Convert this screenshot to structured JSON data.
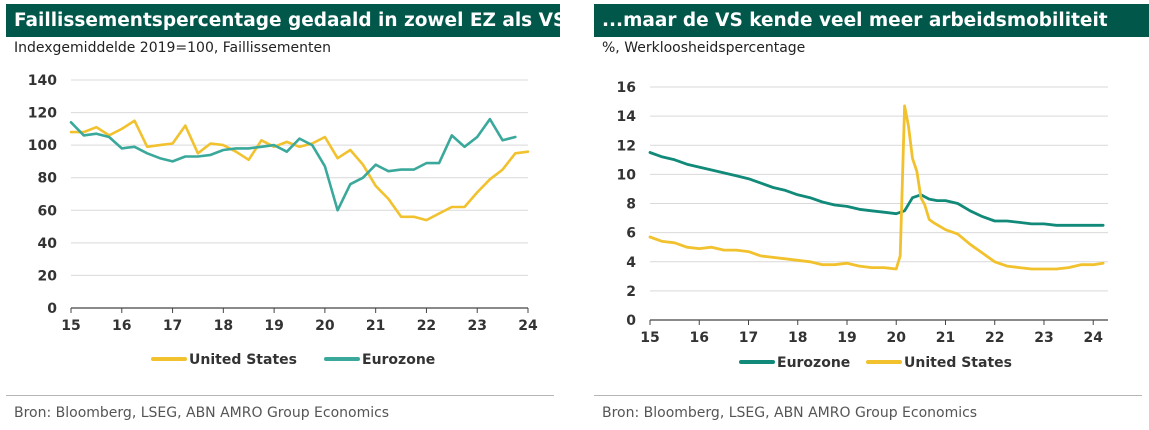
{
  "colors": {
    "title_bg": "#00574a",
    "us": "#f2c12e",
    "ez_left": "#3aa99b",
    "ez_right": "#118a79",
    "grid": "#d9d9d9"
  },
  "left": {
    "title": "Faillissementspercentage gedaald in zowel EZ als VS...",
    "subtitle": "Indexgemiddelde 2019=100, Faillissementen",
    "source": "Bron: Bloomberg, LSEG, ABN AMRO Group Economics"
  },
  "right": {
    "title": "...maar de VS kende veel meer arbeidsmobiliteit",
    "subtitle": "%, Werkloosheidspercentage",
    "source": "Bron: Bloomberg, LSEG, ABN AMRO Group Economics"
  },
  "chart_data": [
    {
      "type": "line",
      "title": "Faillissementspercentage gedaald in zowel EZ als VS...",
      "subtitle": "Indexgemiddelde 2019=100, Faillissementen",
      "xlim": [
        15,
        24
      ],
      "ylim": [
        0,
        140
      ],
      "xticks": [
        "15",
        "16",
        "17",
        "18",
        "19",
        "20",
        "21",
        "22",
        "23",
        "24"
      ],
      "yticks": [
        "0",
        "20",
        "40",
        "60",
        "80",
        "100",
        "120",
        "140"
      ],
      "grid": true,
      "legend": "bottom",
      "series": [
        {
          "name": "United States",
          "color": "#f2c12e",
          "x": [
            15,
            15.25,
            15.5,
            15.75,
            16,
            16.25,
            16.5,
            16.75,
            17,
            17.25,
            17.5,
            17.75,
            18,
            18.25,
            18.5,
            18.75,
            19,
            19.25,
            19.5,
            19.75,
            20,
            20.25,
            20.5,
            20.75,
            21,
            21.25,
            21.5,
            21.75,
            22,
            22.25,
            22.5,
            22.75,
            23,
            23.25,
            23.5,
            23.75,
            24
          ],
          "values": [
            108,
            108,
            111,
            106,
            110,
            115,
            99,
            100,
            101,
            112,
            95,
            101,
            100,
            96,
            91,
            103,
            99,
            102,
            99,
            101,
            105,
            92,
            97,
            88,
            75,
            67,
            56,
            56,
            54,
            58,
            62,
            62,
            71,
            79,
            85,
            95,
            96
          ]
        },
        {
          "name": "Eurozone",
          "color": "#3aa99b",
          "x": [
            15,
            15.25,
            15.5,
            15.75,
            16,
            16.25,
            16.5,
            16.75,
            17,
            17.25,
            17.5,
            17.75,
            18,
            18.25,
            18.5,
            18.75,
            19,
            19.25,
            19.5,
            19.75,
            20,
            20.25,
            20.5,
            20.75,
            21,
            21.25,
            21.5,
            21.75,
            22,
            22.25,
            22.5,
            22.75,
            23,
            23.25,
            23.5,
            23.75
          ],
          "values": [
            114,
            106,
            107,
            105,
            98,
            99,
            95,
            92,
            90,
            93,
            93,
            94,
            97,
            98,
            98,
            99,
            100,
            96,
            104,
            100,
            87,
            60,
            76,
            80,
            88,
            84,
            85,
            85,
            89,
            89,
            106,
            99,
            105,
            116,
            103,
            105
          ]
        }
      ]
    },
    {
      "type": "line",
      "title": "...maar de VS kende veel meer arbeidsmobiliteit",
      "subtitle": "%, Werkloosheidspercentage",
      "xlim": [
        15,
        24.3
      ],
      "ylim": [
        0,
        16
      ],
      "xticks": [
        "15",
        "16",
        "17",
        "18",
        "19",
        "20",
        "21",
        "22",
        "23",
        "24"
      ],
      "yticks": [
        "0",
        "2",
        "4",
        "6",
        "8",
        "10",
        "12",
        "14",
        "16"
      ],
      "grid": true,
      "legend": "bottom",
      "series": [
        {
          "name": "Eurozone",
          "color": "#118a79",
          "x": [
            15,
            15.25,
            15.5,
            15.75,
            16,
            16.25,
            16.5,
            16.75,
            17,
            17.25,
            17.5,
            17.75,
            18,
            18.25,
            18.5,
            18.75,
            19,
            19.25,
            19.5,
            19.75,
            20,
            20.17,
            20.33,
            20.5,
            20.67,
            20.83,
            21,
            21.25,
            21.5,
            21.75,
            22,
            22.25,
            22.5,
            22.75,
            23,
            23.25,
            23.5,
            23.75,
            24,
            24.2
          ],
          "values": [
            11.5,
            11.2,
            11.0,
            10.7,
            10.5,
            10.3,
            10.1,
            9.9,
            9.7,
            9.4,
            9.1,
            8.9,
            8.6,
            8.4,
            8.1,
            7.9,
            7.8,
            7.6,
            7.5,
            7.4,
            7.3,
            7.5,
            8.4,
            8.6,
            8.3,
            8.2,
            8.2,
            8.0,
            7.5,
            7.1,
            6.8,
            6.8,
            6.7,
            6.6,
            6.6,
            6.5,
            6.5,
            6.5,
            6.5,
            6.5
          ]
        },
        {
          "name": "United States",
          "color": "#f2c12e",
          "x": [
            15,
            15.25,
            15.5,
            15.75,
            16,
            16.25,
            16.5,
            16.75,
            17,
            17.25,
            17.5,
            17.75,
            18,
            18.25,
            18.5,
            18.75,
            19,
            19.25,
            19.5,
            19.75,
            20,
            20.08,
            20.17,
            20.25,
            20.33,
            20.42,
            20.5,
            20.58,
            20.67,
            20.75,
            21,
            21.25,
            21.5,
            21.75,
            22,
            22.25,
            22.5,
            22.75,
            23,
            23.25,
            23.5,
            23.75,
            24,
            24.2
          ],
          "values": [
            5.7,
            5.4,
            5.3,
            5.0,
            4.9,
            5.0,
            4.8,
            4.8,
            4.7,
            4.4,
            4.3,
            4.2,
            4.1,
            4.0,
            3.8,
            3.8,
            3.9,
            3.7,
            3.6,
            3.6,
            3.5,
            4.4,
            14.7,
            13.3,
            11.1,
            10.2,
            8.4,
            7.9,
            6.9,
            6.7,
            6.2,
            5.9,
            5.2,
            4.6,
            4.0,
            3.7,
            3.6,
            3.5,
            3.5,
            3.5,
            3.6,
            3.8,
            3.8,
            3.9
          ]
        }
      ]
    }
  ]
}
